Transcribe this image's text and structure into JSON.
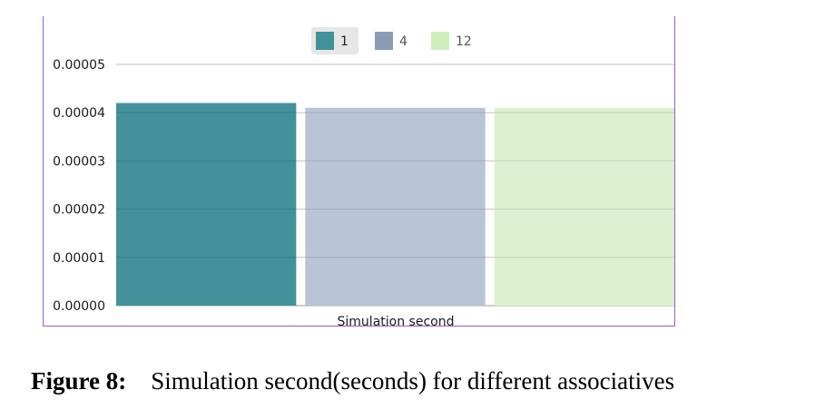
{
  "chart_data": {
    "type": "bar",
    "categories": [
      "Simulation second"
    ],
    "series": [
      {
        "name": "1",
        "values": [
          4.2e-05
        ],
        "color": "#43919a"
      },
      {
        "name": "4",
        "values": [
          4.1e-05
        ],
        "color": "#b9c4d6"
      },
      {
        "name": "12",
        "values": [
          4.1e-05
        ],
        "color": "#ddf1d0"
      }
    ],
    "legend_swatch_colors": [
      "#43919a",
      "#8b9bb4",
      "#cdeebb"
    ],
    "title": "",
    "xlabel": "Simulation second",
    "ylabel": "",
    "ylim": [
      0,
      5e-05
    ],
    "y_ticks": [
      "0.00000",
      "0.00001",
      "0.00002",
      "0.00003",
      "0.00004",
      "0.00005"
    ],
    "grid": true,
    "legend_position": "top-center",
    "active_legend_item": "1",
    "frame_color": "#9b59d0"
  },
  "caption": {
    "label": "Figure 8:",
    "text": "Simulation second(seconds) for different associatives"
  }
}
